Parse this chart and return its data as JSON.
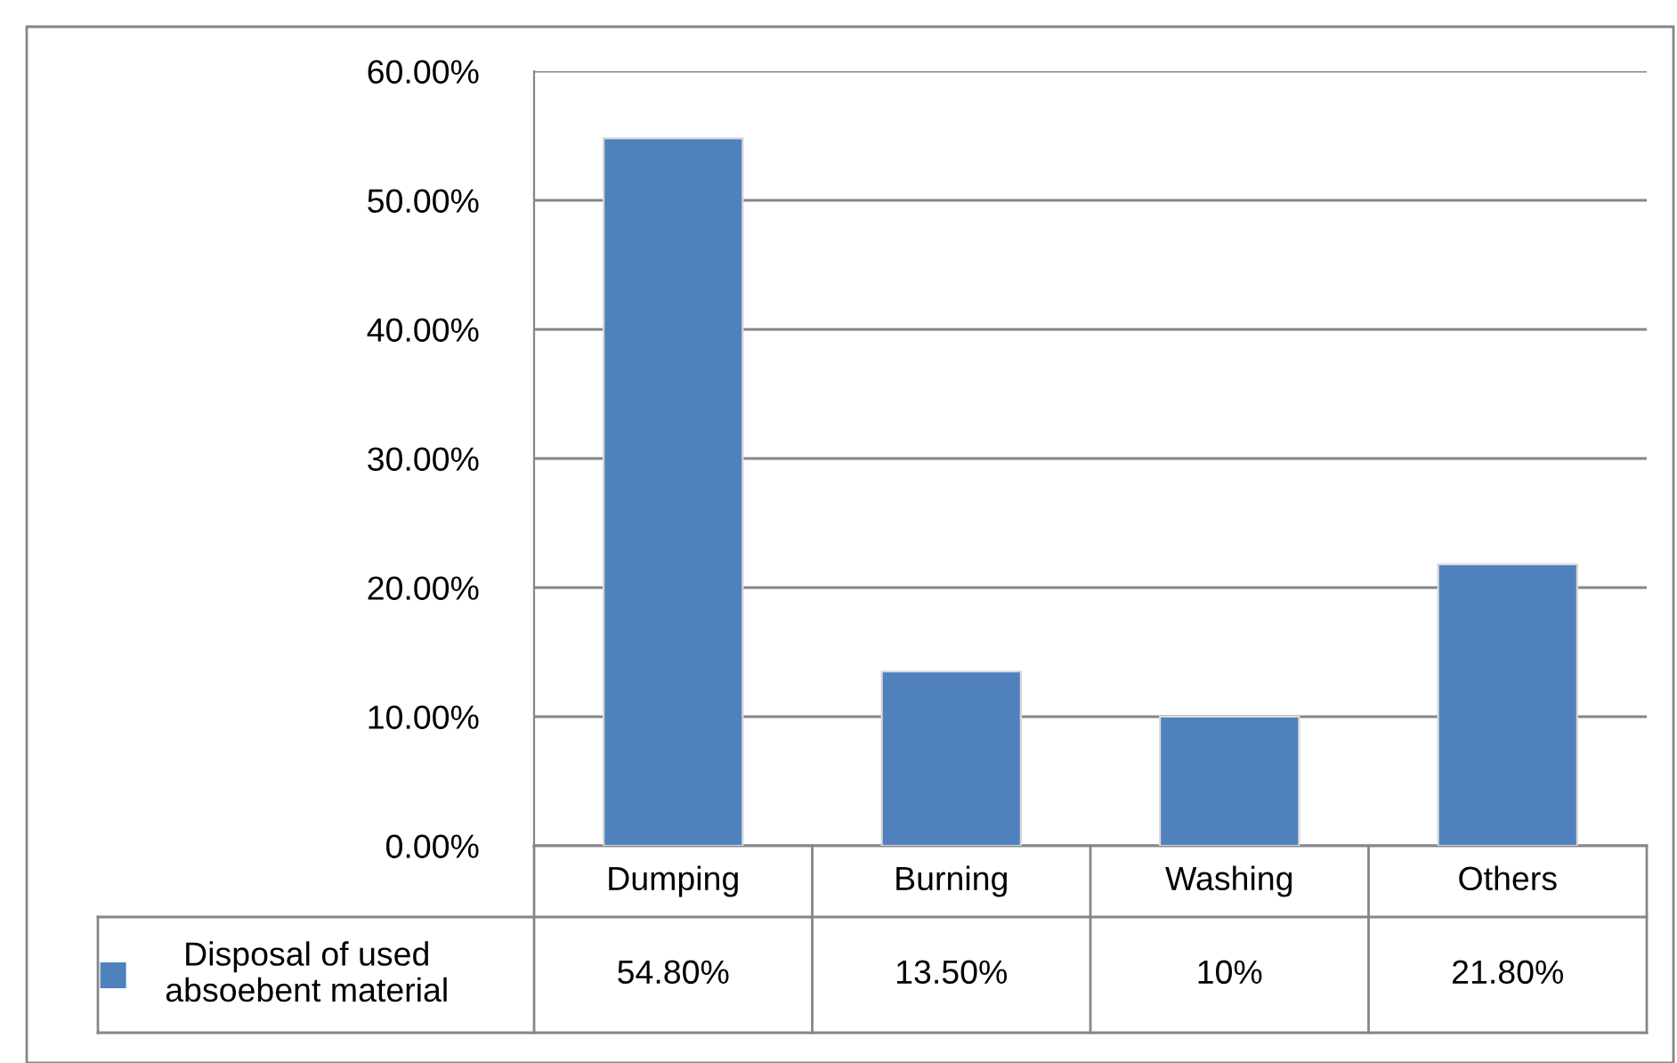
{
  "chart_data": {
    "type": "bar",
    "categories": [
      "Dumping",
      "Burning",
      "Washing",
      "Others"
    ],
    "series": [
      {
        "name": "Disposal of used\nabsoebent material",
        "color": "#4f81bd",
        "values": [
          54.8,
          13.5,
          10,
          21.8
        ],
        "value_labels": [
          "54.80%",
          "13.50%",
          "10%",
          "21.80%"
        ]
      }
    ],
    "ylim": [
      0,
      60
    ],
    "yticks": [
      {
        "value": 0,
        "label": "0.00%"
      },
      {
        "value": 10,
        "label": "10.00%"
      },
      {
        "value": 20,
        "label": "20.00%"
      },
      {
        "value": 30,
        "label": "30.00%"
      },
      {
        "value": 40,
        "label": "40.00%"
      },
      {
        "value": 50,
        "label": "50.00%"
      },
      {
        "value": 60,
        "label": "60.00%"
      }
    ],
    "grid": "y",
    "legend": "bottom"
  }
}
